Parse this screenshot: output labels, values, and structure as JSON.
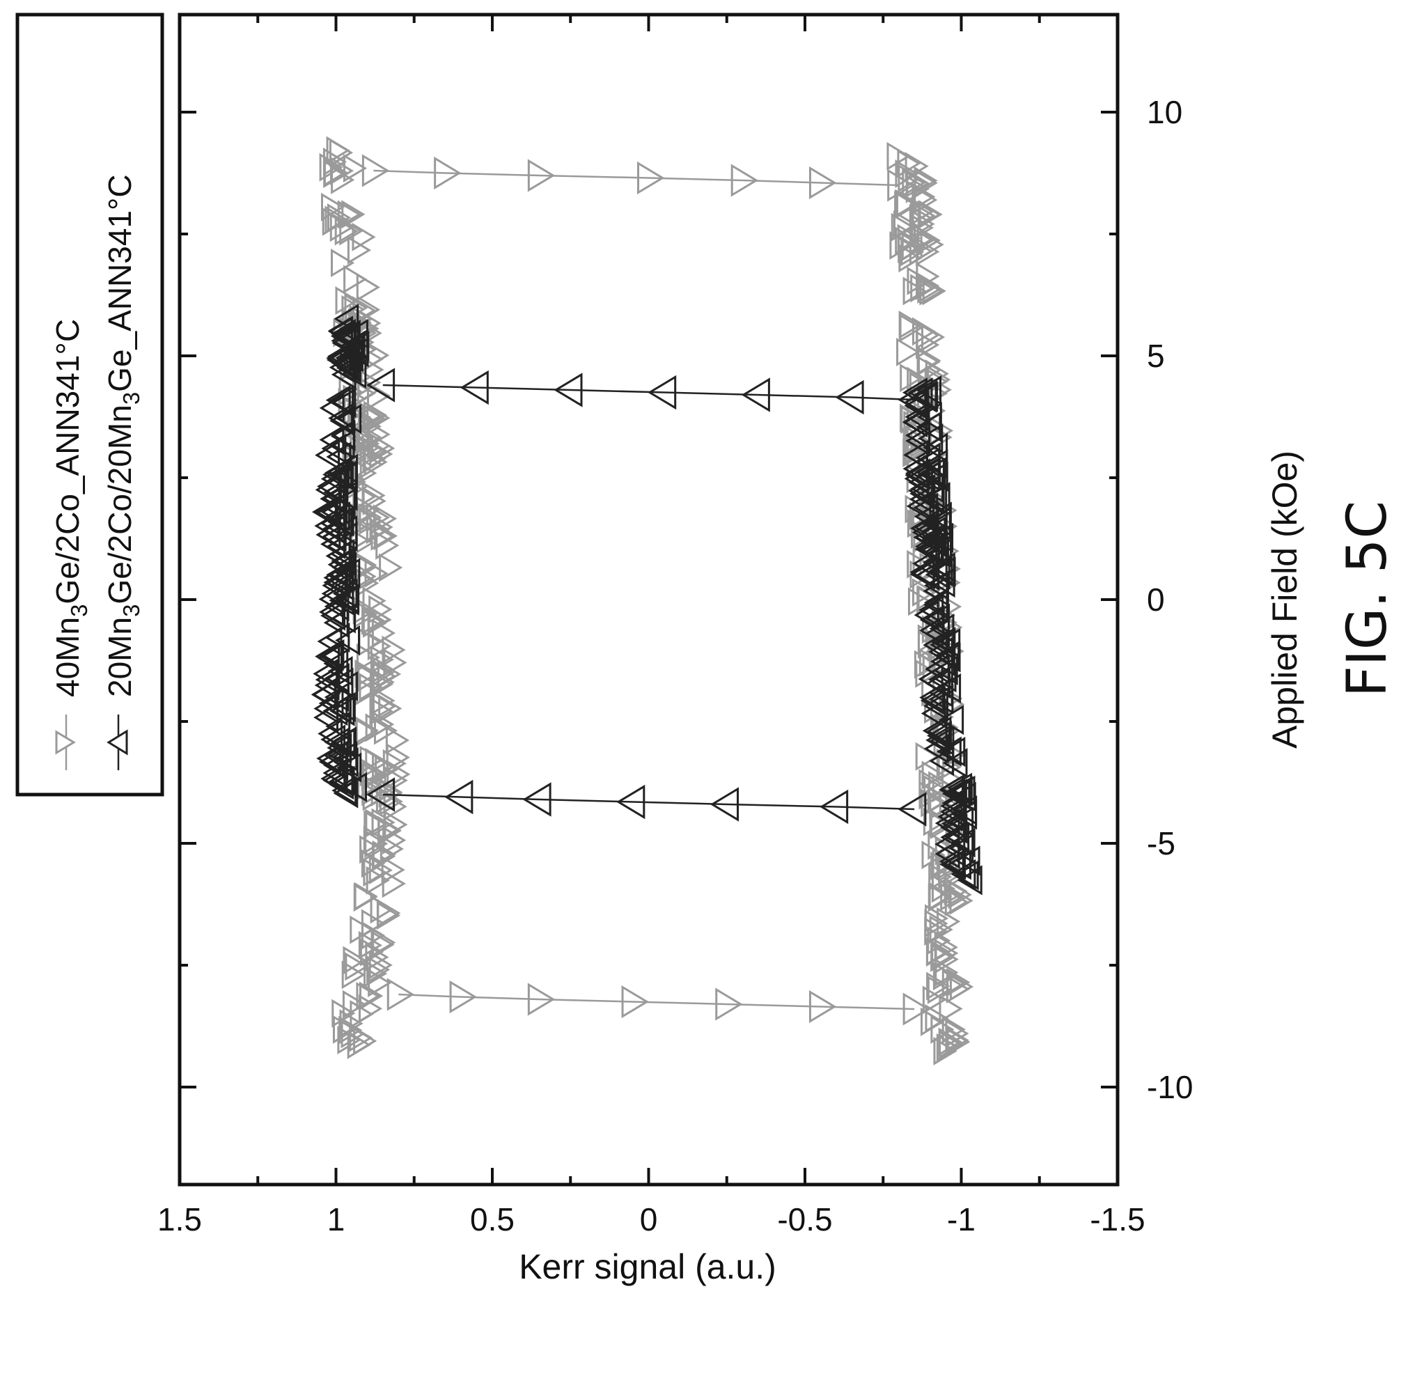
{
  "figure": {
    "caption": "FIG. 5C"
  },
  "chart_data": {
    "type": "scatter",
    "xlabel": "Applied Field (kOe)",
    "ylabel": "Kerr signal (a.u.)",
    "xlim": [
      -12,
      12
    ],
    "ylim": [
      -1.5,
      1.5
    ],
    "x_major_ticks": [
      -10,
      -5,
      0,
      5,
      10
    ],
    "x_minor_ticks": [
      -7.5,
      -2.5,
      2.5,
      7.5
    ],
    "y_major_ticks": [
      1.5,
      1,
      0.5,
      0,
      -0.5,
      -1,
      -1.5
    ],
    "y_minor_ticks": [
      1.25,
      0.75,
      0.25,
      -0.25,
      -0.75,
      -1.25
    ],
    "x_tick_labels": [
      "-10",
      "-5",
      "0",
      "5",
      "10"
    ],
    "y_tick_labels": [
      "1.5",
      "1",
      "0.5",
      "0",
      "-0.5",
      "-1",
      "-1.5"
    ],
    "orientation": "rotated 90 degrees counter-clockwise",
    "legend": {
      "placement": "top-left"
    },
    "grid": false,
    "series": [
      {
        "name_base": "40Mn",
        "name_sub1": "3",
        "name_tail": "Ge/2Co_ANN341°C",
        "marker": "triangle-down",
        "color": "#9a9a9a",
        "loop": {
          "coercive_field_negative": -8.2,
          "coercive_field_positive": 8.5,
          "field_range": [
            -9.3,
            9.3
          ],
          "upper_branch": [
            [
              -9.0,
              0.95
            ],
            [
              -7.5,
              0.9
            ],
            [
              -5.0,
              0.85
            ],
            [
              -2.5,
              0.86
            ],
            [
              0,
              0.87
            ],
            [
              2.5,
              0.9
            ],
            [
              5.0,
              0.92
            ],
            [
              7.5,
              0.96
            ],
            [
              9.2,
              1.0
            ]
          ],
          "lower_branch": [
            [
              -9.2,
              -0.94
            ],
            [
              -7.5,
              -0.95
            ],
            [
              -5.0,
              -0.94
            ],
            [
              -2.5,
              -0.93
            ],
            [
              0,
              -0.91
            ],
            [
              2.5,
              -0.89
            ],
            [
              5.0,
              -0.87
            ],
            [
              7.5,
              -0.85
            ],
            [
              9.0,
              -0.84
            ]
          ],
          "switch_descending": [
            [
              8.8,
              0.88
            ],
            [
              8.75,
              0.65
            ],
            [
              8.7,
              0.35
            ],
            [
              8.65,
              0.0
            ],
            [
              8.6,
              -0.3
            ],
            [
              8.55,
              -0.55
            ],
            [
              8.5,
              -0.8
            ]
          ],
          "switch_ascending": [
            [
              -8.4,
              -0.85
            ],
            [
              -8.35,
              -0.55
            ],
            [
              -8.3,
              -0.25
            ],
            [
              -8.25,
              0.05
            ],
            [
              -8.2,
              0.35
            ],
            [
              -8.15,
              0.6
            ],
            [
              -8.1,
              0.8
            ]
          ]
        }
      },
      {
        "name_base": "20Mn",
        "name_sub1": "3",
        "name_mid": "Ge/2Co/20Mn",
        "name_sub2": "3",
        "name_tail": "Ge_ANN341°C",
        "marker": "triangle-up",
        "color": "#222222",
        "loop": {
          "coercive_field_negative": -4.0,
          "coercive_field_positive": 4.3,
          "field_range": [
            -5.8,
            5.8
          ],
          "upper_branch": [
            [
              -4.0,
              0.96
            ],
            [
              -3.0,
              1.0
            ],
            [
              -2.0,
              1.0
            ],
            [
              -1.0,
              0.99
            ],
            [
              0,
              0.98
            ],
            [
              1.0,
              0.99
            ],
            [
              2.0,
              1.0
            ],
            [
              3.0,
              0.99
            ],
            [
              4.0,
              0.98
            ],
            [
              5.0,
              0.96
            ],
            [
              5.8,
              0.94
            ]
          ],
          "lower_branch": [
            [
              -5.6,
              -1.0
            ],
            [
              -5.0,
              -0.99
            ],
            [
              -4.0,
              -0.98
            ],
            [
              -3.0,
              -0.96
            ],
            [
              -2.0,
              -0.94
            ],
            [
              -1.0,
              -0.93
            ],
            [
              0,
              -0.92
            ],
            [
              1.0,
              -0.91
            ],
            [
              2.0,
              -0.9
            ],
            [
              3.0,
              -0.89
            ],
            [
              4.0,
              -0.88
            ]
          ],
          "switch_descending": [
            [
              4.4,
              0.85
            ],
            [
              4.35,
              0.55
            ],
            [
              4.3,
              0.25
            ],
            [
              4.25,
              -0.05
            ],
            [
              4.2,
              -0.35
            ],
            [
              4.15,
              -0.65
            ],
            [
              4.1,
              -0.85
            ]
          ],
          "switch_ascending": [
            [
              -4.3,
              -0.85
            ],
            [
              -4.25,
              -0.6
            ],
            [
              -4.2,
              -0.25
            ],
            [
              -4.15,
              0.05
            ],
            [
              -4.1,
              0.35
            ],
            [
              -4.05,
              0.6
            ],
            [
              -4.0,
              0.85
            ]
          ]
        }
      }
    ]
  }
}
